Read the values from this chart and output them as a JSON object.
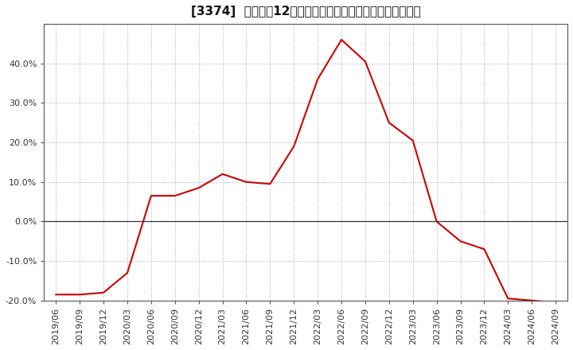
{
  "title": "[3374]  売上高の12か月移動合計の対前年同期増減率の推移",
  "line_color": "#cc0000",
  "background_color": "#ffffff",
  "plot_bg_color": "#ffffff",
  "grid_color": "#aaaaaa",
  "x_labels": [
    "2019/06",
    "2019/09",
    "2019/12",
    "2020/03",
    "2020/06",
    "2020/09",
    "2020/12",
    "2021/03",
    "2021/06",
    "2021/09",
    "2021/12",
    "2022/03",
    "2022/06",
    "2022/09",
    "2022/12",
    "2023/03",
    "2023/06",
    "2023/09",
    "2023/12",
    "2024/03",
    "2024/06",
    "2024/09"
  ],
  "y_values": [
    -18.5,
    -18.5,
    -18.0,
    -13.0,
    6.5,
    6.5,
    8.5,
    12.0,
    10.0,
    9.5,
    19.0,
    36.0,
    46.0,
    40.5,
    25.0,
    20.5,
    0.0,
    -5.0,
    -7.0,
    -19.5,
    -20.0,
    -20.5
  ],
  "ylim": [
    -20.0,
    50.0
  ],
  "yticks": [
    -20.0,
    -10.0,
    0.0,
    10.0,
    20.0,
    30.0,
    40.0
  ],
  "tick_fontsize": 8,
  "title_fontsize": 11
}
